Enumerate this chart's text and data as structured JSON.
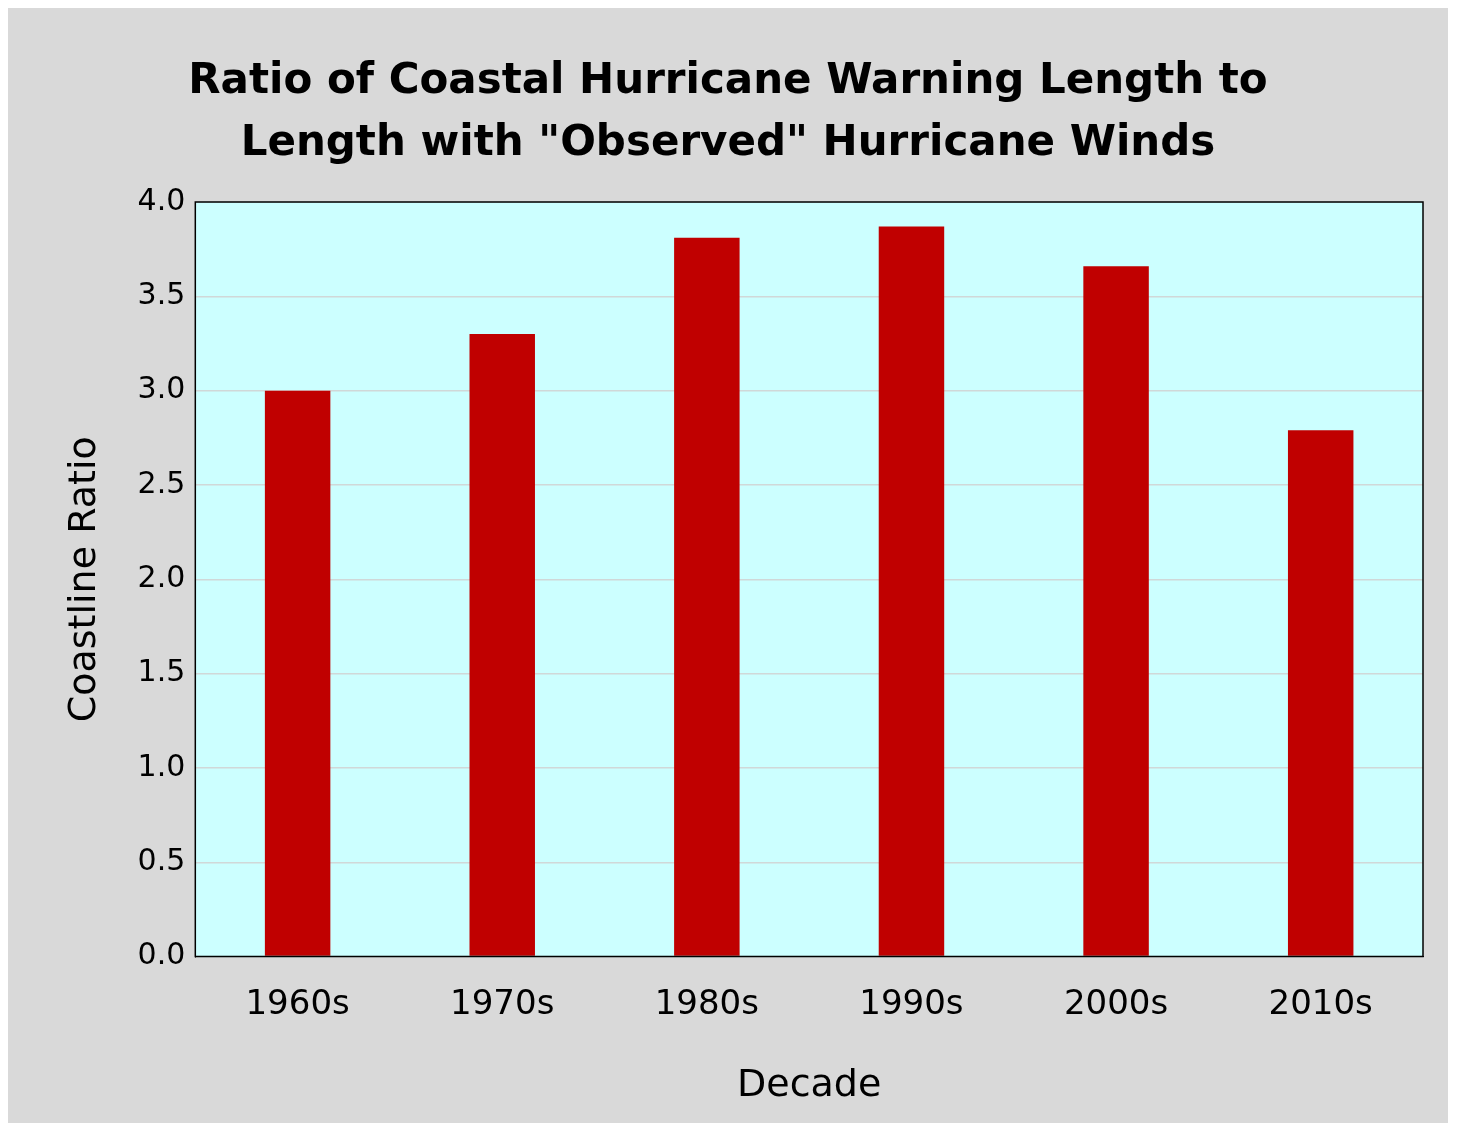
{
  "chart_data": {
    "type": "bar",
    "title": "Ratio of Coastal Hurricane Warning Length to Length with \"Observed\" Hurricane Winds",
    "xlabel": "Decade",
    "ylabel": "Coastline Ratio",
    "categories": [
      "1960s",
      "1970s",
      "1980s",
      "1990s",
      "2000s",
      "2010s"
    ],
    "values": [
      3.0,
      3.3,
      3.81,
      3.87,
      3.66,
      2.79
    ],
    "color": "#c00000",
    "ylim": [
      0,
      4
    ],
    "yticks": [
      {
        "value": 0,
        "label": "0.0"
      },
      0.5,
      {
        "value": 1,
        "label": "1.0"
      },
      1.5,
      {
        "value": 2,
        "label": "2.0"
      },
      2.5,
      {
        "value": 3,
        "label": "3.0"
      },
      3.5,
      {
        "value": 4,
        "label": "4.0"
      }
    ],
    "grid": "y",
    "legend": false
  }
}
